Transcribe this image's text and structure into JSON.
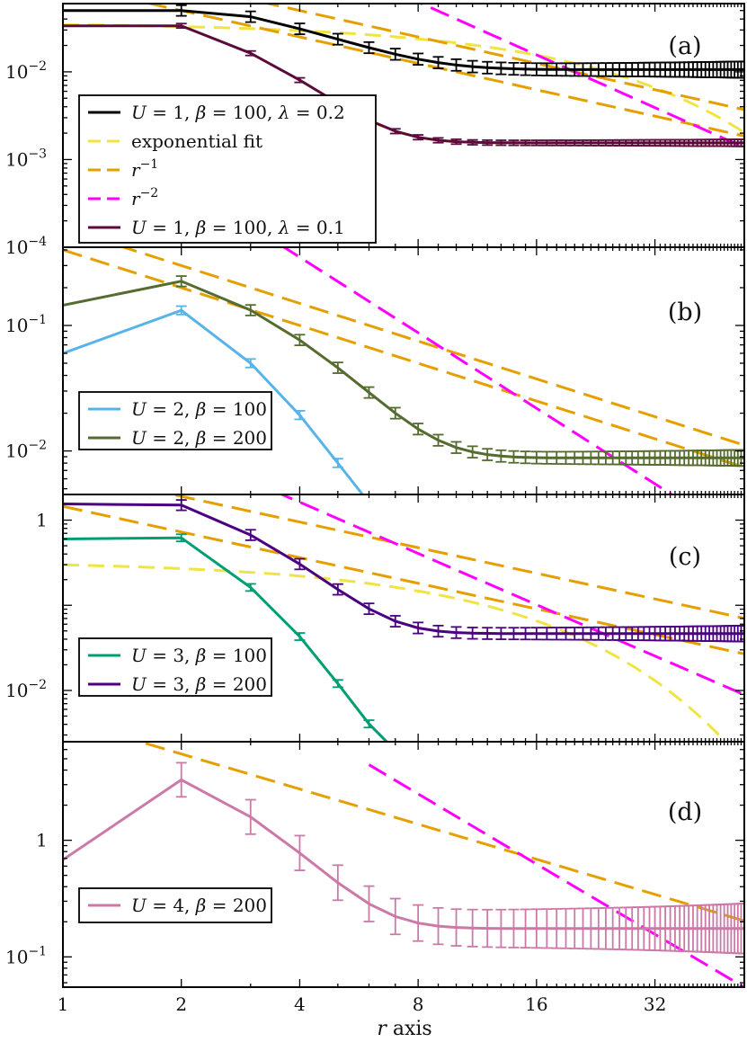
{
  "chart_data": {
    "type": "line",
    "xscale": "log2",
    "xlim": [
      1,
      54
    ],
    "x_ticks": [
      1,
      2,
      4,
      8,
      16,
      32
    ],
    "x_tick_labels": [
      "1",
      "2",
      "4",
      "8",
      "16",
      "32"
    ],
    "xlabel": {
      "symbol": "r",
      "text": " axis"
    },
    "colors": {
      "black": "#000000",
      "exp_fit": "#f0e442",
      "r1": "#e69f00",
      "r2": "#ff00ff",
      "maroon": "#5c0a3c",
      "light_blue": "#56b4e9",
      "olive": "#556b2f",
      "green": "#009e73",
      "purple": "#4b0082",
      "pink": "#cc79a7"
    },
    "panels": [
      {
        "id": "a",
        "label": "(a)",
        "ylim": [
          0.0001,
          0.06
        ],
        "y_ticks": [
          {
            "value": 0.01,
            "base": "10",
            "exp": "−2"
          },
          {
            "value": 0.001,
            "base": "10",
            "exp": "−3"
          },
          {
            "value": 0.0001,
            "base": "10",
            "exp": "−4"
          }
        ],
        "legend": [
          {
            "text": "U = 1, β = 100, λ = 0.2",
            "color": "black",
            "dash": false,
            "parts": [
              [
                "U",
                "i"
              ],
              [
                " = 1, ",
                ""
              ],
              [
                "β",
                "i"
              ],
              [
                " = 100, ",
                ""
              ],
              [
                "λ",
                "i"
              ],
              [
                " = 0.2",
                ""
              ]
            ]
          },
          {
            "text": "exponential fit",
            "color": "exp_fit",
            "dash": true,
            "parts": [
              [
                "exponential fit",
                ""
              ]
            ]
          },
          {
            "text": "r^-1",
            "color": "r1",
            "dash": true,
            "parts": [
              [
                "r",
                "i"
              ],
              [
                "−1",
                "sup"
              ]
            ]
          },
          {
            "text": "r^-2",
            "color": "r2",
            "dash": true,
            "parts": [
              [
                "r",
                "i"
              ],
              [
                "−2",
                "sup"
              ]
            ]
          },
          {
            "text": "U = 1, β = 100, λ = 0.1",
            "color": "maroon",
            "dash": false,
            "parts": [
              [
                "U",
                "i"
              ],
              [
                " = 1, ",
                ""
              ],
              [
                "β",
                "i"
              ],
              [
                " = 100, ",
                ""
              ],
              [
                "λ",
                "i"
              ],
              [
                " = 0.1",
                ""
              ]
            ]
          }
        ],
        "series": [
          {
            "name": "U = 1, β = 100, λ = 0.2",
            "color": "black",
            "role": "data",
            "A": 0.05,
            "B": 0.0106,
            "k": 0.45,
            "xmin": 1,
            "xmax": 54,
            "err": 0.15
          },
          {
            "name": "U = 1, β = 100, λ = 0.1",
            "color": "maroon",
            "role": "data",
            "A": 0.0335,
            "B": 0.00155,
            "k": 0.82,
            "xmin": 1,
            "xmax": 54,
            "err": 0.06
          },
          {
            "name": "exponential fit (λ = 0.2)",
            "color": "exp_fit",
            "role": "fit",
            "expfit": [
              0.0365,
              0.0535
            ],
            "xmin": 1,
            "xmax": 54
          },
          {
            "name": "exponential fit (λ = 0.1)",
            "color": "exp_fit",
            "role": "fit",
            "same_as": 1,
            "xmin": 6,
            "xmax": 54
          },
          {
            "name": "r^-1 upper",
            "color": "r1",
            "role": "power",
            "c": 0.2,
            "p": 1
          },
          {
            "name": "r^-1 lower",
            "color": "r1",
            "role": "power",
            "c": 0.1,
            "p": 1
          },
          {
            "name": "r^-2",
            "color": "r2",
            "role": "power",
            "c": 4.0,
            "p": 2
          }
        ]
      },
      {
        "id": "b",
        "label": "(b)",
        "ylim": [
          0.0045,
          0.42
        ],
        "y_ticks": [
          {
            "value": 0.1,
            "base": "10",
            "exp": "−1"
          },
          {
            "value": 0.01,
            "base": "10",
            "exp": "−2"
          }
        ],
        "legend": [
          {
            "text": "U = 2, β = 100",
            "color": "light_blue",
            "dash": false,
            "parts": [
              [
                "U",
                "i"
              ],
              [
                " = 2, ",
                ""
              ],
              [
                "β",
                "i"
              ],
              [
                " = 100",
                ""
              ]
            ]
          },
          {
            "text": "U = 2, β = 200",
            "color": "olive",
            "dash": false,
            "parts": [
              [
                "U",
                "i"
              ],
              [
                " = 2, ",
                ""
              ],
              [
                "β",
                "i"
              ],
              [
                " = 200",
                ""
              ]
            ]
          }
        ],
        "series": [
          {
            "name": "U = 2, β = 100",
            "color": "light_blue",
            "role": "data",
            "A": 0.132,
            "B": 0.00145,
            "k": 1.0,
            "xmin": 1,
            "xmax": 54,
            "err": 0.08,
            "overrides": [
              [
                1,
                0.06
              ],
              [
                2,
                0.132
              ]
            ]
          },
          {
            "name": "U = 2, β = 200",
            "color": "olive",
            "role": "data",
            "A": 0.225,
            "B": 0.0088,
            "k": 0.6,
            "xmin": 1,
            "xmax": 54,
            "err": 0.1,
            "overrides": [
              [
                1,
                0.145
              ],
              [
                2,
                0.225
              ]
            ]
          },
          {
            "name": "exponential fit",
            "color": "exp_fit",
            "role": "fit",
            "same_as": 0,
            "xmin": 6,
            "xmax": 54
          },
          {
            "name": "r^-1 upper",
            "color": "r1",
            "role": "power",
            "c": 0.6,
            "p": 1
          },
          {
            "name": "r^-1 lower",
            "color": "r1",
            "role": "power",
            "c": 0.4,
            "p": 1
          },
          {
            "name": "r^-2",
            "color": "r2",
            "role": "power",
            "c": 5.6,
            "p": 2
          }
        ]
      },
      {
        "id": "c",
        "label": "(c)",
        "ylim": [
          0.0025,
          2.0
        ],
        "y_ticks": [
          {
            "value": 1,
            "base": "1",
            "exp": ""
          },
          {
            "value": 0.01,
            "base": "10",
            "exp": "−2"
          }
        ],
        "legend": [
          {
            "text": "U = 3, β = 100",
            "color": "green",
            "dash": false,
            "parts": [
              [
                "U",
                "i"
              ],
              [
                " = 3, ",
                ""
              ],
              [
                "β",
                "i"
              ],
              [
                " = 100",
                ""
              ]
            ]
          },
          {
            "text": "U = 3, β = 200",
            "color": "purple",
            "dash": false,
            "parts": [
              [
                "U",
                "i"
              ],
              [
                " = 3, ",
                ""
              ],
              [
                "β",
                "i"
              ],
              [
                " = 200",
                ""
              ]
            ]
          }
        ],
        "series": [
          {
            "name": "U = 3, β = 100",
            "color": "green",
            "role": "data",
            "A": 0.62,
            "B": 0.00125,
            "k": 1.35,
            "xmin": 1,
            "xmax": 54,
            "err": 0.1,
            "overrides": [
              [
                1,
                0.6
              ]
            ]
          },
          {
            "name": "U = 3, β = 200",
            "color": "purple",
            "role": "data",
            "A": 1.5,
            "B": 0.0465,
            "k": 0.88,
            "xmin": 1,
            "xmax": 54,
            "err": 0.15,
            "overrides": [
              [
                1,
                1.55
              ]
            ]
          },
          {
            "name": "exponential fit",
            "color": "exp_fit",
            "role": "fit",
            "expfit": [
              0.33,
              0.101
            ],
            "xmin": 1,
            "xmax": 54
          },
          {
            "name": "r^-1 upper",
            "color": "r1",
            "role": "power",
            "c": 3.8,
            "p": 1
          },
          {
            "name": "r^-1 lower",
            "color": "r1",
            "role": "power",
            "c": 1.45,
            "p": 1
          },
          {
            "name": "r^-2",
            "color": "r2",
            "role": "power",
            "c": 26,
            "p": 2
          }
        ]
      },
      {
        "id": "d",
        "label": "(d)",
        "ylim": [
          0.055,
          7.0
        ],
        "y_ticks": [
          {
            "value": 1,
            "base": "1",
            "exp": ""
          },
          {
            "value": 0.1,
            "base": "10",
            "exp": "−1"
          }
        ],
        "legend": [
          {
            "text": "U = 4, β = 200",
            "color": "pink",
            "dash": false,
            "parts": [
              [
                "U",
                "i"
              ],
              [
                " = 4, ",
                ""
              ],
              [
                "β",
                "i"
              ],
              [
                " = 200",
                ""
              ]
            ]
          }
        ],
        "series": [
          {
            "name": "U = 4, β = 200",
            "color": "pink",
            "role": "data",
            "A": 3.3,
            "B": 0.175,
            "k": 0.85,
            "xmin": 1,
            "xmax": 54,
            "err": 0.4,
            "overrides": [
              [
                1,
                0.68
              ],
              [
                2,
                3.3
              ]
            ]
          },
          {
            "name": "r^-1",
            "color": "r1",
            "role": "power",
            "c": 11,
            "p": 1
          },
          {
            "name": "r^-2",
            "color": "r2",
            "role": "power",
            "c": 160,
            "p": 2,
            "xmin_draw": 6,
            "force_to": 0
          }
        ]
      }
    ]
  }
}
